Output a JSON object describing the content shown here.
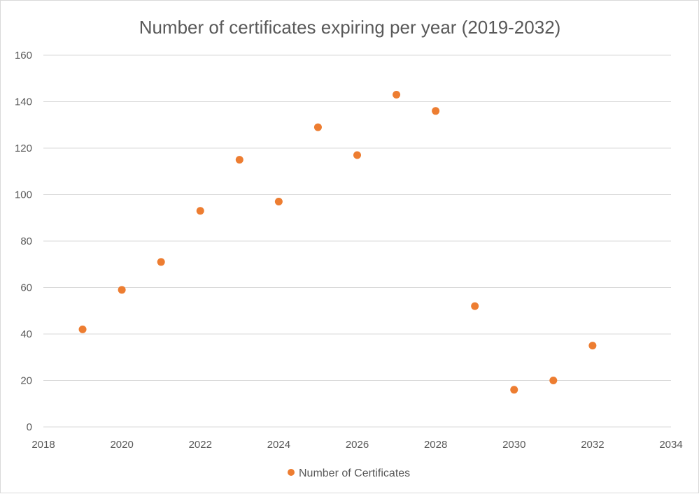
{
  "chart_data": {
    "type": "scatter",
    "title": "Number of certificates expiring per year (2019-2032)",
    "xlabel": "",
    "ylabel": "",
    "xlim": [
      2018,
      2034
    ],
    "ylim": [
      0,
      160
    ],
    "x_ticks": [
      2018,
      2020,
      2022,
      2024,
      2026,
      2028,
      2030,
      2032,
      2034
    ],
    "y_ticks": [
      0,
      20,
      40,
      60,
      80,
      100,
      120,
      140,
      160
    ],
    "grid": "horizontal",
    "legend_position": "bottom",
    "series": [
      {
        "name": "Number of Certificates",
        "color": "#ED7D31",
        "points": [
          {
            "x": 2019,
            "y": 42
          },
          {
            "x": 2020,
            "y": 59
          },
          {
            "x": 2021,
            "y": 71
          },
          {
            "x": 2022,
            "y": 93
          },
          {
            "x": 2023,
            "y": 115
          },
          {
            "x": 2024,
            "y": 97
          },
          {
            "x": 2025,
            "y": 129
          },
          {
            "x": 2026,
            "y": 117
          },
          {
            "x": 2027,
            "y": 143
          },
          {
            "x": 2028,
            "y": 136
          },
          {
            "x": 2029,
            "y": 52
          },
          {
            "x": 2030,
            "y": 16
          },
          {
            "x": 2031,
            "y": 20
          },
          {
            "x": 2032,
            "y": 35
          }
        ]
      }
    ]
  }
}
